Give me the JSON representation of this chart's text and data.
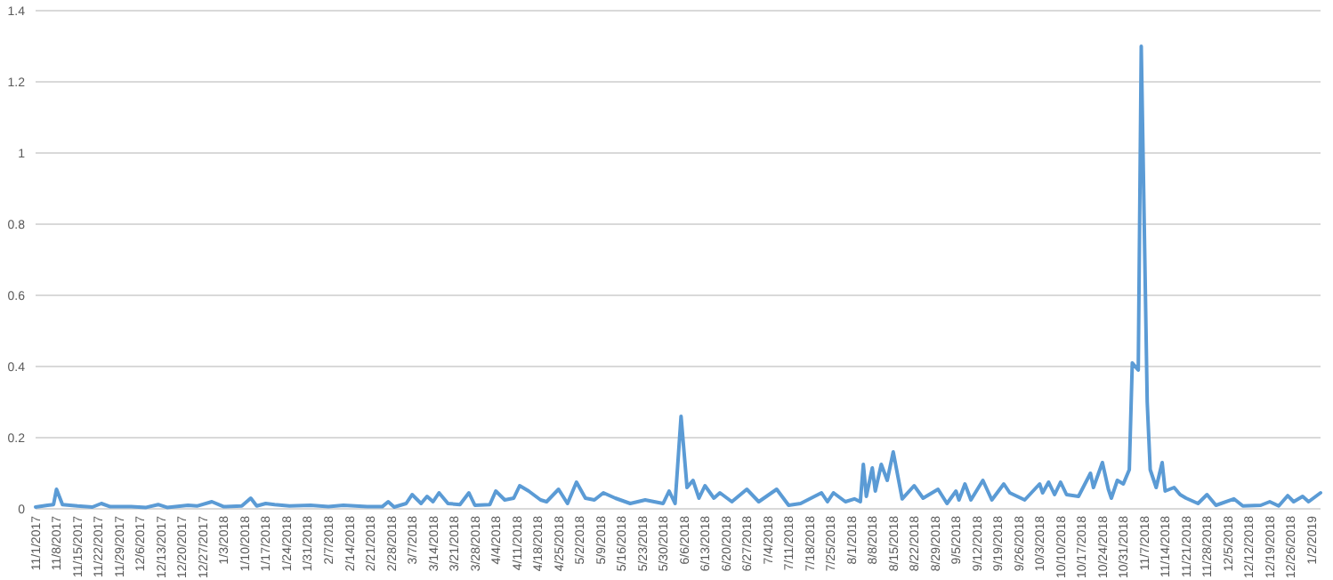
{
  "chart_data": {
    "type": "line",
    "grid": "y",
    "line_style": "solid",
    "marker": "none",
    "xlim": [
      "2017-11-01",
      "2019-01-05"
    ],
    "ylim": [
      0,
      1.4
    ],
    "yticks": [
      0,
      0.2,
      0.4,
      0.6,
      0.8,
      1,
      1.2,
      1.4
    ],
    "xticks": [
      {
        "value": "2017-11-01",
        "label": "11/1/2017"
      },
      {
        "value": "2017-11-08",
        "label": "11/8/2017"
      },
      {
        "value": "2017-11-15",
        "label": "11/15/2017"
      },
      {
        "value": "2017-11-22",
        "label": "11/22/2017"
      },
      {
        "value": "2017-11-29",
        "label": "11/29/2017"
      },
      {
        "value": "2017-12-06",
        "label": "12/6/2017"
      },
      {
        "value": "2017-12-13",
        "label": "12/13/2017"
      },
      {
        "value": "2017-12-20",
        "label": "12/20/2017"
      },
      {
        "value": "2017-12-27",
        "label": "12/27/2017"
      },
      {
        "value": "2018-01-03",
        "label": "1/3/2018"
      },
      {
        "value": "2018-01-10",
        "label": "1/10/2018"
      },
      {
        "value": "2018-01-17",
        "label": "1/17/2018"
      },
      {
        "value": "2018-01-24",
        "label": "1/24/2018"
      },
      {
        "value": "2018-01-31",
        "label": "1/31/2018"
      },
      {
        "value": "2018-02-07",
        "label": "2/7/2018"
      },
      {
        "value": "2018-02-14",
        "label": "2/14/2018"
      },
      {
        "value": "2018-02-21",
        "label": "2/21/2018"
      },
      {
        "value": "2018-02-28",
        "label": "2/28/2018"
      },
      {
        "value": "2018-03-07",
        "label": "3/7/2018"
      },
      {
        "value": "2018-03-14",
        "label": "3/14/2018"
      },
      {
        "value": "2018-03-21",
        "label": "3/21/2018"
      },
      {
        "value": "2018-03-28",
        "label": "3/28/2018"
      },
      {
        "value": "2018-04-04",
        "label": "4/4/2018"
      },
      {
        "value": "2018-04-11",
        "label": "4/11/2018"
      },
      {
        "value": "2018-04-18",
        "label": "4/18/2018"
      },
      {
        "value": "2018-04-25",
        "label": "4/25/2018"
      },
      {
        "value": "2018-05-02",
        "label": "5/2/2018"
      },
      {
        "value": "2018-05-09",
        "label": "5/9/2018"
      },
      {
        "value": "2018-05-16",
        "label": "5/16/2018"
      },
      {
        "value": "2018-05-23",
        "label": "5/23/2018"
      },
      {
        "value": "2018-05-30",
        "label": "5/30/2018"
      },
      {
        "value": "2018-06-06",
        "label": "6/6/2018"
      },
      {
        "value": "2018-06-13",
        "label": "6/13/2018"
      },
      {
        "value": "2018-06-20",
        "label": "6/20/2018"
      },
      {
        "value": "2018-06-27",
        "label": "6/27/2018"
      },
      {
        "value": "2018-07-04",
        "label": "7/4/2018"
      },
      {
        "value": "2018-07-11",
        "label": "7/11/2018"
      },
      {
        "value": "2018-07-18",
        "label": "7/18/2018"
      },
      {
        "value": "2018-07-25",
        "label": "7/25/2018"
      },
      {
        "value": "2018-08-01",
        "label": "8/1/2018"
      },
      {
        "value": "2018-08-08",
        "label": "8/8/2018"
      },
      {
        "value": "2018-08-15",
        "label": "8/15/2018"
      },
      {
        "value": "2018-08-22",
        "label": "8/22/2018"
      },
      {
        "value": "2018-08-29",
        "label": "8/29/2018"
      },
      {
        "value": "2018-09-05",
        "label": "9/5/2018"
      },
      {
        "value": "2018-09-12",
        "label": "9/12/2018"
      },
      {
        "value": "2018-09-19",
        "label": "9/19/2018"
      },
      {
        "value": "2018-09-26",
        "label": "9/26/2018"
      },
      {
        "value": "2018-10-03",
        "label": "10/3/2018"
      },
      {
        "value": "2018-10-10",
        "label": "10/10/2018"
      },
      {
        "value": "2018-10-17",
        "label": "10/17/2018"
      },
      {
        "value": "2018-10-24",
        "label": "10/24/2018"
      },
      {
        "value": "2018-10-31",
        "label": "10/31/2018"
      },
      {
        "value": "2018-11-07",
        "label": "11/7/2018"
      },
      {
        "value": "2018-11-14",
        "label": "11/14/2018"
      },
      {
        "value": "2018-11-21",
        "label": "11/21/2018"
      },
      {
        "value": "2018-11-28",
        "label": "11/28/2018"
      },
      {
        "value": "2018-12-05",
        "label": "12/5/2018"
      },
      {
        "value": "2018-12-12",
        "label": "12/12/2018"
      },
      {
        "value": "2018-12-19",
        "label": "12/19/2018"
      },
      {
        "value": "2018-12-26",
        "label": "12/26/2018"
      },
      {
        "value": "2019-01-02",
        "label": "1/2/2019"
      }
    ],
    "x": [
      "2017-11-01",
      "2017-11-05",
      "2017-11-07",
      "2017-11-08",
      "2017-11-10",
      "2017-11-15",
      "2017-11-20",
      "2017-11-23",
      "2017-11-26",
      "2017-12-03",
      "2017-12-08",
      "2017-12-12",
      "2017-12-15",
      "2017-12-22",
      "2017-12-25",
      "2017-12-30",
      "2018-01-03",
      "2018-01-09",
      "2018-01-12",
      "2018-01-14",
      "2018-01-17",
      "2018-01-20",
      "2018-01-25",
      "2018-02-01",
      "2018-02-07",
      "2018-02-12",
      "2018-02-20",
      "2018-02-25",
      "2018-02-27",
      "2018-03-01",
      "2018-03-05",
      "2018-03-07",
      "2018-03-10",
      "2018-03-12",
      "2018-03-14",
      "2018-03-16",
      "2018-03-19",
      "2018-03-23",
      "2018-03-26",
      "2018-03-28",
      "2018-04-02",
      "2018-04-04",
      "2018-04-07",
      "2018-04-10",
      "2018-04-12",
      "2018-04-15",
      "2018-04-19",
      "2018-04-21",
      "2018-04-25",
      "2018-04-28",
      "2018-05-01",
      "2018-05-04",
      "2018-05-07",
      "2018-05-10",
      "2018-05-14",
      "2018-05-19",
      "2018-05-24",
      "2018-05-30",
      "2018-06-01",
      "2018-06-03",
      "2018-06-05",
      "2018-06-07",
      "2018-06-09",
      "2018-06-11",
      "2018-06-13",
      "2018-06-16",
      "2018-06-18",
      "2018-06-22",
      "2018-06-27",
      "2018-07-01",
      "2018-07-07",
      "2018-07-11",
      "2018-07-15",
      "2018-07-22",
      "2018-07-24",
      "2018-07-26",
      "2018-07-30",
      "2018-08-02",
      "2018-08-04",
      "2018-08-05",
      "2018-08-06",
      "2018-08-08",
      "2018-08-09",
      "2018-08-11",
      "2018-08-13",
      "2018-08-15",
      "2018-08-18",
      "2018-08-22",
      "2018-08-25",
      "2018-08-30",
      "2018-09-02",
      "2018-09-05",
      "2018-09-06",
      "2018-09-08",
      "2018-09-10",
      "2018-09-14",
      "2018-09-17",
      "2018-09-21",
      "2018-09-23",
      "2018-09-28",
      "2018-10-03",
      "2018-10-04",
      "2018-10-06",
      "2018-10-08",
      "2018-10-10",
      "2018-10-12",
      "2018-10-16",
      "2018-10-20",
      "2018-10-21",
      "2018-10-24",
      "2018-10-26",
      "2018-10-27",
      "2018-10-29",
      "2018-10-31",
      "2018-11-02",
      "2018-11-03",
      "2018-11-05",
      "2018-11-06",
      "2018-11-08",
      "2018-11-09",
      "2018-11-11",
      "2018-11-13",
      "2018-11-14",
      "2018-11-17",
      "2018-11-19",
      "2018-11-21",
      "2018-11-25",
      "2018-11-28",
      "2018-12-01",
      "2018-12-07",
      "2018-12-10",
      "2018-12-16",
      "2018-12-19",
      "2018-12-22",
      "2018-12-25",
      "2018-12-27",
      "2018-12-30",
      "2019-01-01",
      "2019-01-05"
    ],
    "series": [
      {
        "color": "#5b9bd5",
        "values": [
          0.005,
          0.01,
          0.012,
          0.055,
          0.012,
          0.008,
          0.005,
          0.015,
          0.006,
          0.006,
          0.004,
          0.012,
          0.004,
          0.01,
          0.008,
          0.02,
          0.006,
          0.008,
          0.03,
          0.008,
          0.015,
          0.012,
          0.008,
          0.01,
          0.006,
          0.01,
          0.006,
          0.006,
          0.02,
          0.005,
          0.015,
          0.04,
          0.015,
          0.035,
          0.02,
          0.045,
          0.015,
          0.012,
          0.045,
          0.01,
          0.012,
          0.05,
          0.025,
          0.03,
          0.065,
          0.05,
          0.025,
          0.02,
          0.055,
          0.015,
          0.075,
          0.03,
          0.025,
          0.045,
          0.03,
          0.015,
          0.025,
          0.015,
          0.05,
          0.015,
          0.26,
          0.06,
          0.08,
          0.03,
          0.065,
          0.03,
          0.045,
          0.02,
          0.055,
          0.02,
          0.055,
          0.01,
          0.015,
          0.045,
          0.02,
          0.045,
          0.02,
          0.028,
          0.02,
          0.125,
          0.035,
          0.115,
          0.05,
          0.125,
          0.08,
          0.16,
          0.028,
          0.065,
          0.03,
          0.055,
          0.015,
          0.05,
          0.025,
          0.07,
          0.025,
          0.08,
          0.025,
          0.07,
          0.045,
          0.025,
          0.07,
          0.045,
          0.075,
          0.04,
          0.075,
          0.04,
          0.035,
          0.1,
          0.06,
          0.13,
          0.055,
          0.03,
          0.08,
          0.07,
          0.11,
          0.41,
          0.39,
          1.3,
          0.3,
          0.11,
          0.06,
          0.13,
          0.05,
          0.06,
          0.04,
          0.03,
          0.015,
          0.04,
          0.01,
          0.028,
          0.008,
          0.01,
          0.02,
          0.008,
          0.037,
          0.02,
          0.035,
          0.02,
          0.045
        ]
      }
    ]
  }
}
